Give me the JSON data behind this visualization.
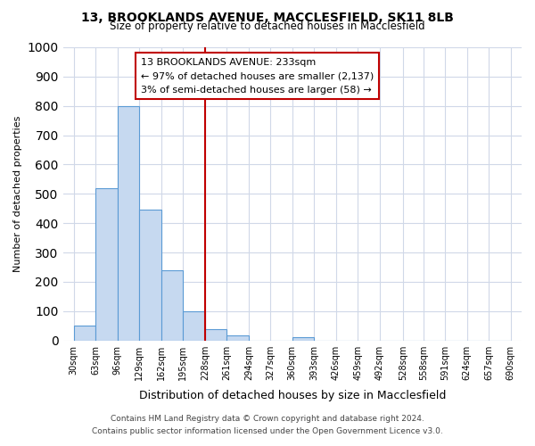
{
  "title": "13, BROOKLANDS AVENUE, MACCLESFIELD, SK11 8LB",
  "subtitle": "Size of property relative to detached houses in Macclesfield",
  "xlabel": "Distribution of detached houses by size in Macclesfield",
  "ylabel": "Number of detached properties",
  "bar_color": "#c6d9f0",
  "bar_edge_color": "#5b9bd5",
  "bin_labels": [
    "30sqm",
    "63sqm",
    "96sqm",
    "129sqm",
    "162sqm",
    "195sqm",
    "228sqm",
    "261sqm",
    "294sqm",
    "327sqm",
    "360sqm",
    "393sqm",
    "426sqm",
    "459sqm",
    "492sqm",
    "528sqm",
    "558sqm",
    "591sqm",
    "624sqm",
    "657sqm",
    "690sqm"
  ],
  "bar_heights": [
    52,
    520,
    800,
    445,
    240,
    100,
    40,
    18,
    0,
    0,
    10,
    0,
    0,
    0,
    0,
    0,
    0,
    0,
    0,
    0
  ],
  "bin_edges": [
    30,
    63,
    96,
    129,
    162,
    195,
    228,
    261,
    294,
    327,
    360,
    393,
    426,
    459,
    492,
    528,
    558,
    591,
    624,
    657,
    690
  ],
  "property_size": 233,
  "vline_x": 228,
  "vline_color": "#c00000",
  "ylim": [
    0,
    1000
  ],
  "yticks": [
    0,
    100,
    200,
    300,
    400,
    500,
    600,
    700,
    800,
    900,
    1000
  ],
  "annotation_title": "13 BROOKLANDS AVENUE: 233sqm",
  "annotation_line1": "← 97% of detached houses are smaller (2,137)",
  "annotation_line2": "3% of semi-detached houses are larger (58) →",
  "annotation_box_color": "#ffffff",
  "annotation_box_edge": "#c00000",
  "footer_line1": "Contains HM Land Registry data © Crown copyright and database right 2024.",
  "footer_line2": "Contains public sector information licensed under the Open Government Licence v3.0.",
  "background_color": "#ffffff",
  "grid_color": "#d0d8e8"
}
